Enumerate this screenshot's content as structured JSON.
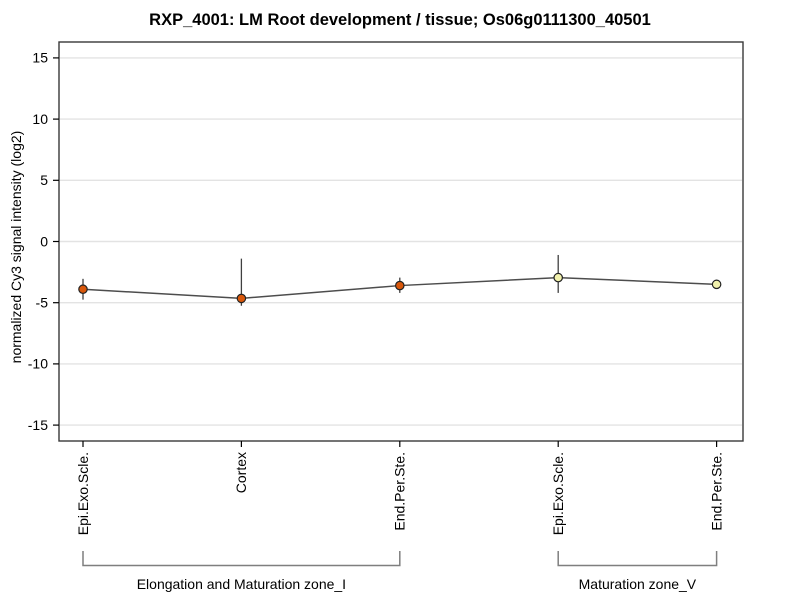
{
  "chart_data": {
    "type": "line",
    "title": "RXP_4001: LM Root development / tissue; Os06g0111300_40501",
    "ylabel": "normalized Cy3 signal intensity (log2)",
    "xlabel": "",
    "ylim": [
      -16.3,
      16.3
    ],
    "yticks": [
      15,
      10,
      5,
      0,
      -5,
      -10,
      -15
    ],
    "grid": "horizontal-only",
    "legend": "none",
    "categories": [
      "Epi.Exo.Scle.",
      "Cortex",
      "End.Per.Ste.",
      "Epi.Exo.Scle.",
      "End.Per.Ste."
    ],
    "series": [
      {
        "name": "normalized Cy3 signal",
        "values": [
          -3.9,
          -4.65,
          -3.6,
          -2.95,
          -3.5
        ],
        "err_low": [
          -4.75,
          -5.25,
          -4.2,
          -4.2,
          -3.85
        ],
        "err_high": [
          -3.05,
          -1.4,
          -2.95,
          -1.1,
          -3.2
        ],
        "point_colors": [
          "#d9570a",
          "#d9570a",
          "#d9570a",
          "#f2f2ad",
          "#f2f2ad"
        ]
      }
    ],
    "groups": [
      {
        "label": "Elongation and Maturation zone_I",
        "from_index": 0,
        "to_index": 2
      },
      {
        "label": "Maturation zone_V",
        "from_index": 3,
        "to_index": 4
      }
    ],
    "colors": {
      "line": "#4d4d4d",
      "error_bar": "#404040",
      "grid": "#e3e3e3",
      "box": "#383838",
      "tick": "#000000",
      "bracket": "#7f7f7f",
      "point_stroke": "#222222",
      "background": "#ffffff",
      "text": "#000000"
    }
  }
}
